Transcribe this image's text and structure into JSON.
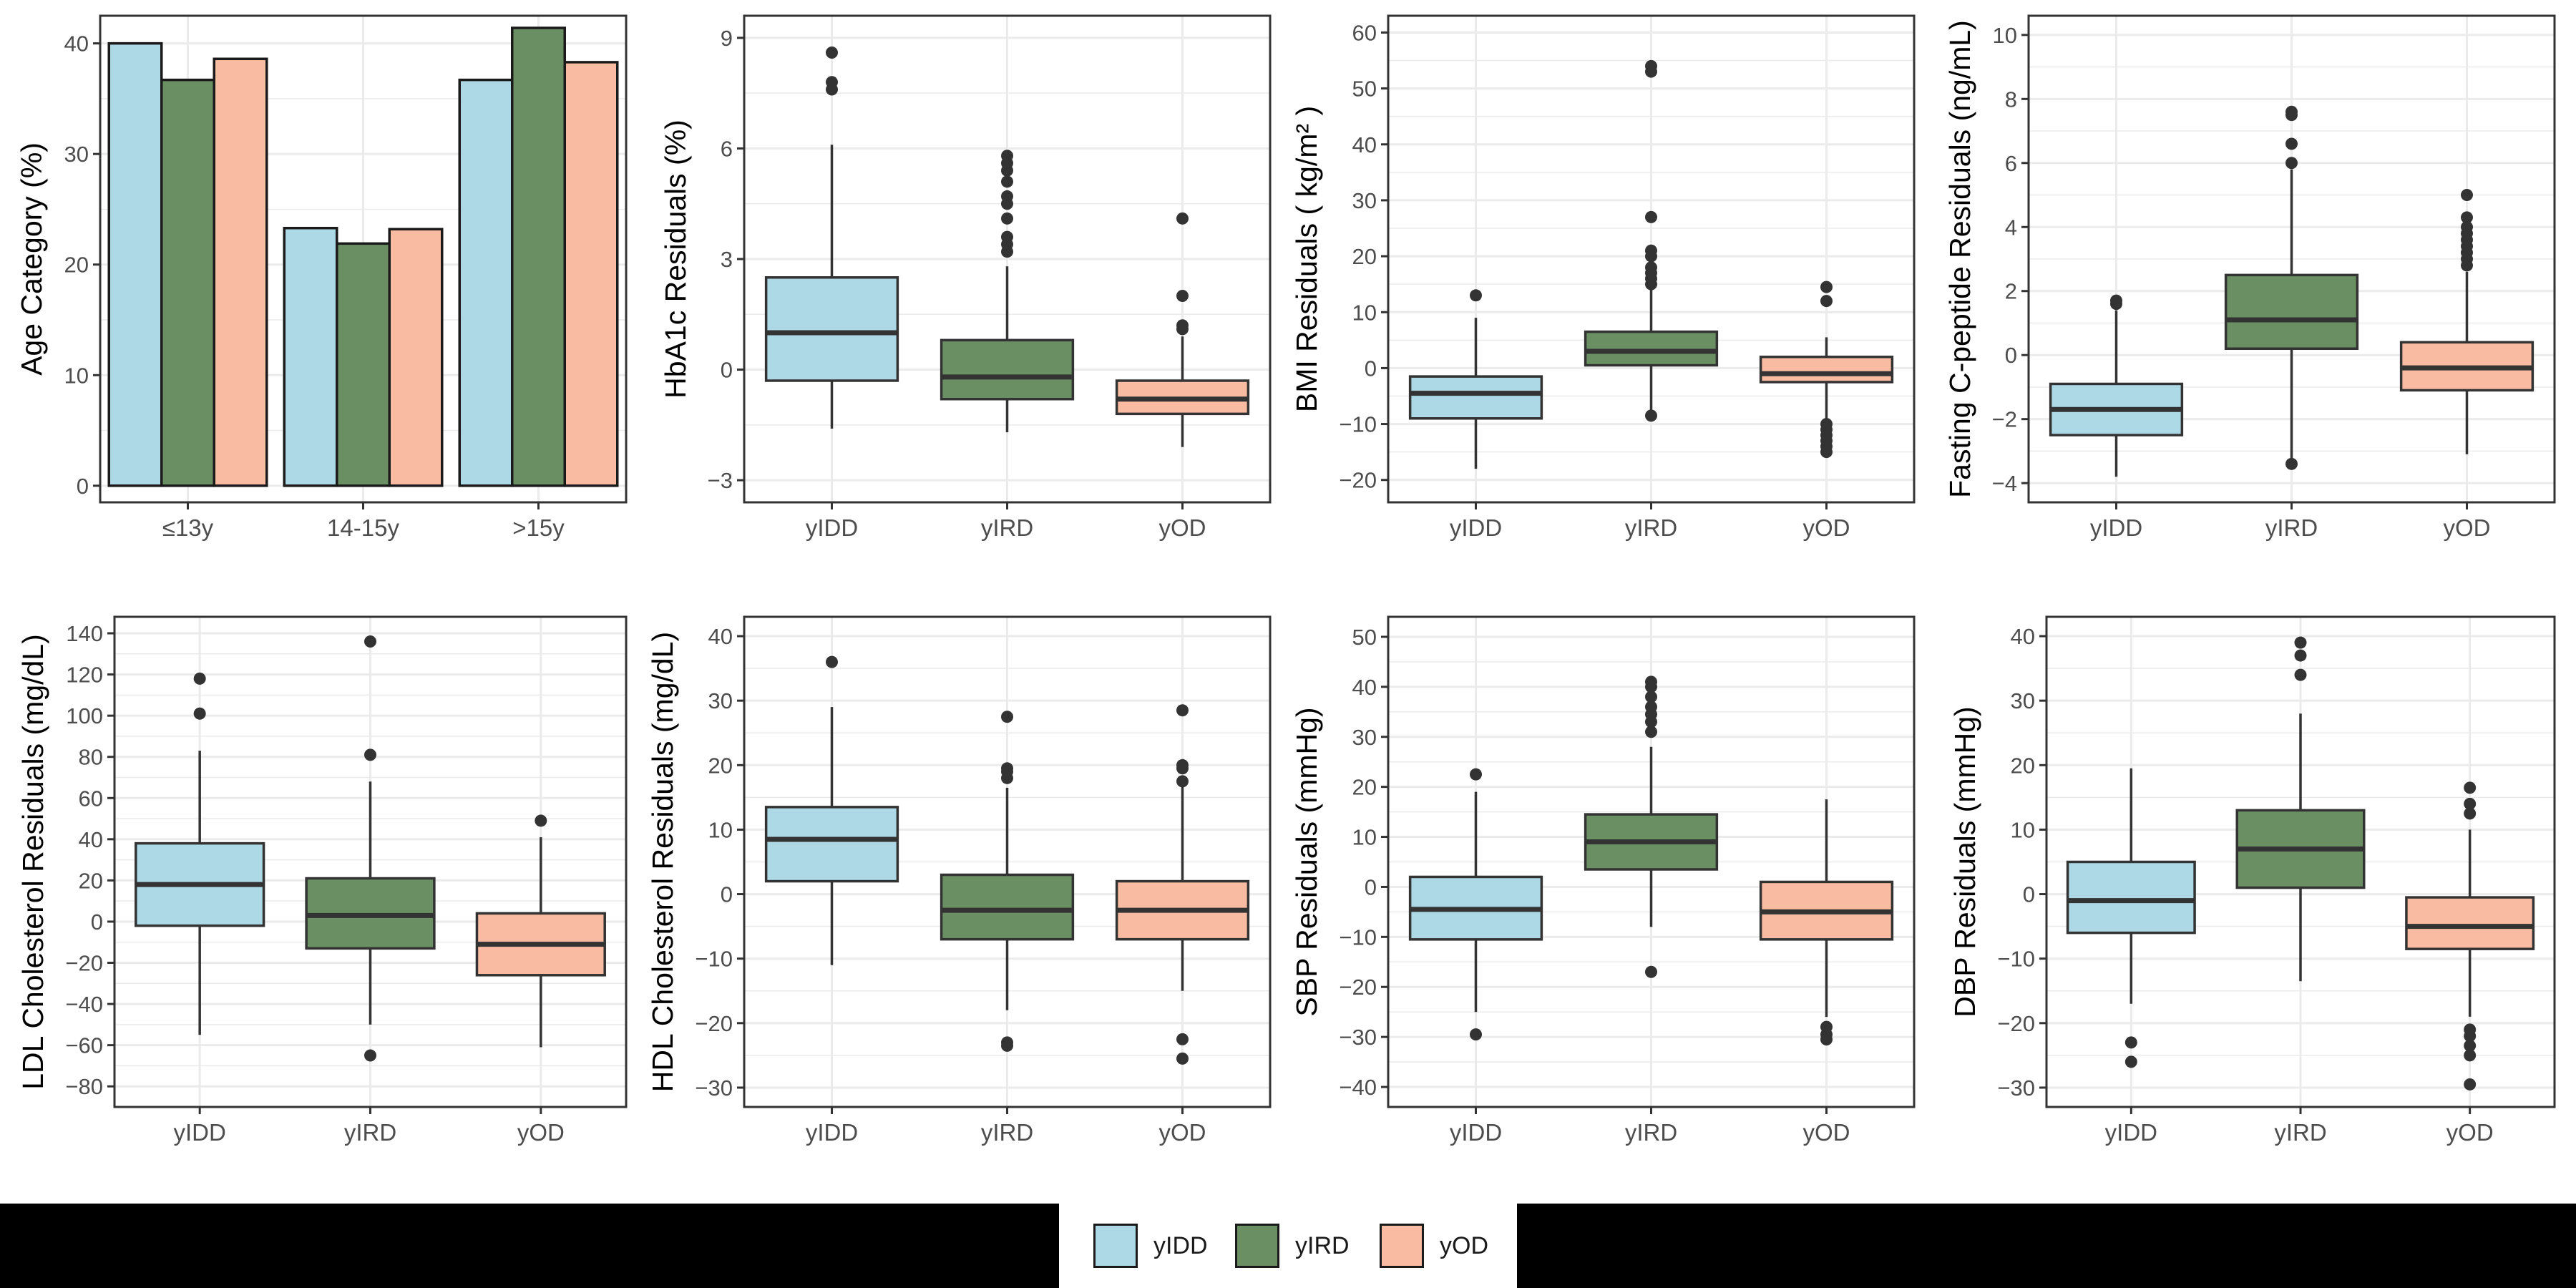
{
  "colors": {
    "yIDD": "#ADD8E6",
    "yIRD": "#6A8F62",
    "yOD": "#F9BBA1",
    "line": "#333333",
    "grid": "#EBEBEB",
    "panel_border": "#333333",
    "axis_text": "#4D4D4D",
    "legend_bar": "#000000"
  },
  "legend": {
    "position": "bottom",
    "items": [
      {
        "key": "yIDD",
        "label": "yIDD"
      },
      {
        "key": "yIRD",
        "label": "yIRD"
      },
      {
        "key": "yOD",
        "label": "yOD"
      }
    ]
  },
  "chart_data": [
    {
      "type": "bar",
      "ylabel": "Age Category (%)",
      "categories": [
        "≤13y",
        "14-15y",
        ">15y"
      ],
      "series": [
        {
          "name": "yIDD",
          "values": [
            40.0,
            23.3,
            36.7
          ]
        },
        {
          "name": "yIRD",
          "values": [
            36.7,
            21.9,
            41.4
          ]
        },
        {
          "name": "yOD",
          "values": [
            38.6,
            23.2,
            38.3
          ]
        }
      ],
      "ylim": [
        -1.5,
        42.5
      ],
      "yticks": [
        0,
        10,
        20,
        30,
        40
      ],
      "grid": true
    },
    {
      "type": "box",
      "ylabel": "HbA1c Residuals (%)",
      "categories": [
        "yIDD",
        "yIRD",
        "yOD"
      ],
      "boxes": [
        {
          "group": "yIDD",
          "whisker_low": -1.6,
          "q1": -0.3,
          "median": 1.0,
          "q3": 2.5,
          "whisker_high": 6.1,
          "outliers": [
            7.6,
            7.8,
            8.6
          ]
        },
        {
          "group": "yIRD",
          "whisker_low": -1.7,
          "q1": -0.8,
          "median": -0.2,
          "q3": 0.8,
          "whisker_high": 2.8,
          "outliers": [
            3.2,
            3.4,
            3.6,
            4.1,
            4.5,
            4.7,
            5.1,
            5.4,
            5.6,
            5.8
          ]
        },
        {
          "group": "yOD",
          "whisker_low": -2.1,
          "q1": -1.2,
          "median": -0.8,
          "q3": -0.3,
          "whisker_high": 0.9,
          "outliers": [
            1.1,
            1.2,
            2.0,
            4.1
          ]
        }
      ],
      "ylim": [
        -3.6,
        9.6
      ],
      "yticks": [
        -3,
        0,
        3,
        6,
        9
      ],
      "grid": true
    },
    {
      "type": "box",
      "ylabel": "BMI Residuals ( kg/m² )",
      "categories": [
        "yIDD",
        "yIRD",
        "yOD"
      ],
      "boxes": [
        {
          "group": "yIDD",
          "whisker_low": -18,
          "q1": -9,
          "median": -4.5,
          "q3": -1.5,
          "whisker_high": 9,
          "outliers": [
            13
          ]
        },
        {
          "group": "yIRD",
          "whisker_low": -8.5,
          "q1": 0.5,
          "median": 3,
          "q3": 6.5,
          "whisker_high": 14,
          "outliers": [
            -8.5,
            15,
            16,
            17,
            18,
            20,
            21,
            27,
            53,
            54
          ]
        },
        {
          "group": "yOD",
          "whisker_low": -9,
          "q1": -2.5,
          "median": -1,
          "q3": 2,
          "whisker_high": 5.5,
          "outliers": [
            -10,
            -11,
            -12,
            -13,
            -14,
            -15,
            12,
            14.5
          ]
        }
      ],
      "ylim": [
        -24,
        63
      ],
      "yticks": [
        -20,
        -10,
        0,
        10,
        20,
        30,
        40,
        50,
        60
      ],
      "grid": true
    },
    {
      "type": "box",
      "ylabel": "Fasting C-peptide Residuals (ng/mL)",
      "categories": [
        "yIDD",
        "yIRD",
        "yOD"
      ],
      "boxes": [
        {
          "group": "yIDD",
          "whisker_low": -3.8,
          "q1": -2.5,
          "median": -1.7,
          "q3": -0.9,
          "whisker_high": 1.4,
          "outliers": [
            1.6,
            1.7
          ]
        },
        {
          "group": "yIRD",
          "whisker_low": -3.3,
          "q1": 0.2,
          "median": 1.1,
          "q3": 2.5,
          "whisker_high": 5.8,
          "outliers": [
            -3.4,
            6.0,
            6.6,
            7.5,
            7.6
          ]
        },
        {
          "group": "yOD",
          "whisker_low": -3.1,
          "q1": -1.1,
          "median": -0.4,
          "q3": 0.4,
          "whisker_high": 2.6,
          "outliers": [
            2.8,
            3.0,
            3.2,
            3.4,
            3.6,
            3.8,
            4.0,
            4.3,
            5.0
          ]
        }
      ],
      "ylim": [
        -4.6,
        10.6
      ],
      "yticks": [
        -4,
        -2,
        0,
        2,
        4,
        6,
        8,
        10
      ],
      "grid": true
    },
    {
      "type": "box",
      "ylabel": "LDL Cholesterol Residuals (mg/dL)",
      "categories": [
        "yIDD",
        "yIRD",
        "yOD"
      ],
      "boxes": [
        {
          "group": "yIDD",
          "whisker_low": -55,
          "q1": -2,
          "median": 18,
          "q3": 38,
          "whisker_high": 83,
          "outliers": [
            101,
            118
          ]
        },
        {
          "group": "yIRD",
          "whisker_low": -50,
          "q1": -13,
          "median": 3,
          "q3": 21,
          "whisker_high": 68,
          "outliers": [
            -65,
            81,
            136
          ]
        },
        {
          "group": "yOD",
          "whisker_low": -61,
          "q1": -26,
          "median": -11,
          "q3": 4,
          "whisker_high": 41,
          "outliers": [
            49
          ]
        }
      ],
      "ylim": [
        -90,
        148
      ],
      "yticks": [
        -80,
        -60,
        -40,
        -20,
        0,
        20,
        40,
        60,
        80,
        100,
        120,
        140
      ],
      "grid": true
    },
    {
      "type": "box",
      "ylabel": "HDL Cholesterol Residuals (mg/dL)",
      "categories": [
        "yIDD",
        "yIRD",
        "yOD"
      ],
      "boxes": [
        {
          "group": "yIDD",
          "whisker_low": -11,
          "q1": 2,
          "median": 8.5,
          "q3": 13.5,
          "whisker_high": 29,
          "outliers": [
            36
          ]
        },
        {
          "group": "yIRD",
          "whisker_low": -18,
          "q1": -7,
          "median": -2.5,
          "q3": 3,
          "whisker_high": 16.5,
          "outliers": [
            -23.5,
            -23,
            18,
            19,
            19.5,
            27.5
          ]
        },
        {
          "group": "yOD",
          "whisker_low": -15,
          "q1": -7,
          "median": -2.5,
          "q3": 2,
          "whisker_high": 17,
          "outliers": [
            -25.5,
            -22.5,
            17.5,
            19.5,
            20,
            28.5
          ]
        }
      ],
      "ylim": [
        -33,
        43
      ],
      "yticks": [
        -30,
        -20,
        -10,
        0,
        10,
        20,
        30,
        40
      ],
      "grid": true
    },
    {
      "type": "box",
      "ylabel": "SBP Residuals (mmHg)",
      "categories": [
        "yIDD",
        "yIRD",
        "yOD"
      ],
      "boxes": [
        {
          "group": "yIDD",
          "whisker_low": -25,
          "q1": -10.5,
          "median": -4.5,
          "q3": 2,
          "whisker_high": 19,
          "outliers": [
            -29.5,
            22.5
          ]
        },
        {
          "group": "yIRD",
          "whisker_low": -8,
          "q1": 3.5,
          "median": 9,
          "q3": 14.5,
          "whisker_high": 28,
          "outliers": [
            -17,
            31,
            33,
            34.5,
            36,
            38,
            40,
            41
          ]
        },
        {
          "group": "yOD",
          "whisker_low": -26,
          "q1": -10.5,
          "median": -5,
          "q3": 1,
          "whisker_high": 17.5,
          "outliers": [
            -28,
            -29.5,
            -30.5
          ]
        }
      ],
      "ylim": [
        -44,
        54
      ],
      "yticks": [
        -40,
        -30,
        -20,
        -10,
        0,
        10,
        20,
        30,
        40,
        50
      ],
      "grid": true
    },
    {
      "type": "box",
      "ylabel": "DBP Residuals (mmHg)",
      "categories": [
        "yIDD",
        "yIRD",
        "yOD"
      ],
      "boxes": [
        {
          "group": "yIDD",
          "whisker_low": -17,
          "q1": -6,
          "median": -1,
          "q3": 5,
          "whisker_high": 19.5,
          "outliers": [
            -26,
            -23
          ]
        },
        {
          "group": "yIRD",
          "whisker_low": -13.5,
          "q1": 1,
          "median": 7,
          "q3": 13,
          "whisker_high": 28,
          "outliers": [
            34,
            37,
            39
          ]
        },
        {
          "group": "yOD",
          "whisker_low": -19,
          "q1": -8.5,
          "median": -5,
          "q3": -0.5,
          "whisker_high": 10,
          "outliers": [
            -29.5,
            -25,
            -23.5,
            -22,
            -21,
            12.5,
            14,
            16.5
          ]
        }
      ],
      "ylim": [
        -33,
        43
      ],
      "yticks": [
        -30,
        -20,
        -10,
        0,
        10,
        20,
        30,
        40
      ],
      "grid": true
    }
  ]
}
